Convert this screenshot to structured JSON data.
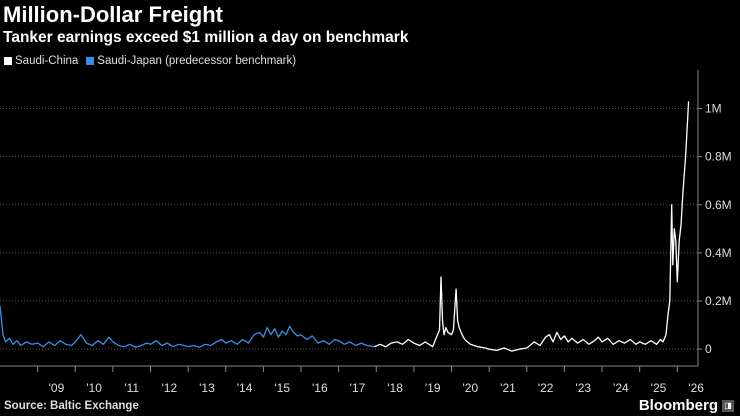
{
  "title": "Million-Dollar Freight",
  "subtitle": "Tanker earnings exceed $1 million a day on benchmark",
  "source": "Source: Baltic Exchange",
  "brand": "Bloomberg",
  "colors": {
    "saudi_china": "#ffffff",
    "saudi_japan": "#3a8ee6",
    "background": "#000000"
  },
  "chart_data": {
    "type": "line",
    "title": "Million-Dollar Freight",
    "subtitle": "Tanker earnings exceed $1 million a day on benchmark",
    "xlabel": "",
    "ylabel": "",
    "x_ticks": [
      "'09",
      "'10",
      "'11",
      "'12",
      "'13",
      "'14",
      "'15",
      "'16",
      "'17",
      "'18",
      "'19",
      "'20",
      "'21",
      "'22",
      "'23",
      "'24",
      "'25",
      "'26"
    ],
    "y_ticks": [
      "0",
      "0.2M",
      "0.4M",
      "0.6M",
      "0.8M",
      "1M"
    ],
    "ylim": [
      -70000,
      1160000
    ],
    "xlim": [
      2008.0,
      2026.55
    ],
    "grid": true,
    "legend_position": "top-left",
    "series": [
      {
        "name": "Saudi-Japan (predecessor benchmark)",
        "color": "#3a8ee6",
        "points": [
          [
            2008.0,
            180000
          ],
          [
            2008.04,
            120000
          ],
          [
            2008.08,
            60000
          ],
          [
            2008.15,
            30000
          ],
          [
            2008.25,
            45000
          ],
          [
            2008.35,
            20000
          ],
          [
            2008.45,
            35000
          ],
          [
            2008.55,
            15000
          ],
          [
            2008.7,
            30000
          ],
          [
            2008.85,
            20000
          ],
          [
            2009.0,
            25000
          ],
          [
            2009.15,
            10000
          ],
          [
            2009.3,
            30000
          ],
          [
            2009.45,
            15000
          ],
          [
            2009.6,
            35000
          ],
          [
            2009.75,
            20000
          ],
          [
            2009.9,
            15000
          ],
          [
            2010.0,
            30000
          ],
          [
            2010.15,
            60000
          ],
          [
            2010.3,
            25000
          ],
          [
            2010.45,
            15000
          ],
          [
            2010.6,
            35000
          ],
          [
            2010.75,
            20000
          ],
          [
            2010.9,
            50000
          ],
          [
            2011.0,
            30000
          ],
          [
            2011.15,
            15000
          ],
          [
            2011.3,
            10000
          ],
          [
            2011.45,
            20000
          ],
          [
            2011.6,
            8000
          ],
          [
            2011.75,
            15000
          ],
          [
            2011.9,
            25000
          ],
          [
            2012.0,
            20000
          ],
          [
            2012.15,
            35000
          ],
          [
            2012.3,
            15000
          ],
          [
            2012.45,
            25000
          ],
          [
            2012.6,
            10000
          ],
          [
            2012.75,
            20000
          ],
          [
            2012.9,
            15000
          ],
          [
            2013.0,
            10000
          ],
          [
            2013.15,
            15000
          ],
          [
            2013.3,
            8000
          ],
          [
            2013.45,
            20000
          ],
          [
            2013.6,
            15000
          ],
          [
            2013.75,
            30000
          ],
          [
            2013.9,
            40000
          ],
          [
            2014.0,
            25000
          ],
          [
            2014.15,
            35000
          ],
          [
            2014.3,
            20000
          ],
          [
            2014.45,
            40000
          ],
          [
            2014.6,
            25000
          ],
          [
            2014.75,
            60000
          ],
          [
            2014.9,
            70000
          ],
          [
            2015.0,
            50000
          ],
          [
            2015.1,
            90000
          ],
          [
            2015.2,
            60000
          ],
          [
            2015.3,
            85000
          ],
          [
            2015.4,
            50000
          ],
          [
            2015.5,
            75000
          ],
          [
            2015.6,
            60000
          ],
          [
            2015.7,
            95000
          ],
          [
            2015.8,
            70000
          ],
          [
            2015.9,
            55000
          ],
          [
            2016.0,
            60000
          ],
          [
            2016.15,
            40000
          ],
          [
            2016.3,
            55000
          ],
          [
            2016.45,
            25000
          ],
          [
            2016.6,
            35000
          ],
          [
            2016.75,
            20000
          ],
          [
            2016.9,
            40000
          ],
          [
            2017.0,
            35000
          ],
          [
            2017.15,
            20000
          ],
          [
            2017.3,
            30000
          ],
          [
            2017.45,
            15000
          ],
          [
            2017.6,
            25000
          ],
          [
            2017.75,
            15000
          ],
          [
            2017.95,
            10000
          ]
        ]
      },
      {
        "name": "Saudi-China",
        "color": "#ffffff",
        "points": [
          [
            2017.95,
            10000
          ],
          [
            2018.1,
            20000
          ],
          [
            2018.25,
            10000
          ],
          [
            2018.4,
            25000
          ],
          [
            2018.55,
            30000
          ],
          [
            2018.7,
            20000
          ],
          [
            2018.85,
            40000
          ],
          [
            2019.0,
            25000
          ],
          [
            2019.15,
            15000
          ],
          [
            2019.3,
            30000
          ],
          [
            2019.4,
            20000
          ],
          [
            2019.5,
            10000
          ],
          [
            2019.6,
            50000
          ],
          [
            2019.68,
            80000
          ],
          [
            2019.72,
            300000
          ],
          [
            2019.76,
            120000
          ],
          [
            2019.8,
            60000
          ],
          [
            2019.85,
            90000
          ],
          [
            2019.9,
            70000
          ],
          [
            2020.0,
            60000
          ],
          [
            2020.05,
            80000
          ],
          [
            2020.12,
            250000
          ],
          [
            2020.16,
            120000
          ],
          [
            2020.2,
            90000
          ],
          [
            2020.28,
            60000
          ],
          [
            2020.35,
            40000
          ],
          [
            2020.5,
            20000
          ],
          [
            2020.7,
            10000
          ],
          [
            2020.9,
            5000
          ],
          [
            2021.0,
            0
          ],
          [
            2021.2,
            -5000
          ],
          [
            2021.4,
            5000
          ],
          [
            2021.6,
            -8000
          ],
          [
            2021.8,
            0
          ],
          [
            2022.0,
            5000
          ],
          [
            2022.2,
            30000
          ],
          [
            2022.35,
            15000
          ],
          [
            2022.5,
            50000
          ],
          [
            2022.6,
            60000
          ],
          [
            2022.7,
            30000
          ],
          [
            2022.8,
            70000
          ],
          [
            2022.9,
            40000
          ],
          [
            2023.0,
            55000
          ],
          [
            2023.1,
            30000
          ],
          [
            2023.2,
            45000
          ],
          [
            2023.35,
            25000
          ],
          [
            2023.5,
            40000
          ],
          [
            2023.65,
            20000
          ],
          [
            2023.8,
            35000
          ],
          [
            2023.9,
            50000
          ],
          [
            2024.0,
            30000
          ],
          [
            2024.15,
            45000
          ],
          [
            2024.3,
            20000
          ],
          [
            2024.45,
            35000
          ],
          [
            2024.6,
            25000
          ],
          [
            2024.75,
            40000
          ],
          [
            2024.9,
            20000
          ],
          [
            2025.0,
            30000
          ],
          [
            2025.15,
            20000
          ],
          [
            2025.3,
            35000
          ],
          [
            2025.45,
            20000
          ],
          [
            2025.55,
            40000
          ],
          [
            2025.62,
            30000
          ],
          [
            2025.7,
            60000
          ],
          [
            2025.75,
            140000
          ],
          [
            2025.8,
            200000
          ],
          [
            2025.85,
            600000
          ],
          [
            2025.88,
            350000
          ],
          [
            2025.92,
            500000
          ],
          [
            2025.96,
            450000
          ],
          [
            2026.0,
            280000
          ],
          [
            2026.05,
            450000
          ],
          [
            2026.1,
            520000
          ],
          [
            2026.15,
            650000
          ],
          [
            2026.22,
            800000
          ],
          [
            2026.3,
            1030000
          ]
        ]
      }
    ]
  }
}
